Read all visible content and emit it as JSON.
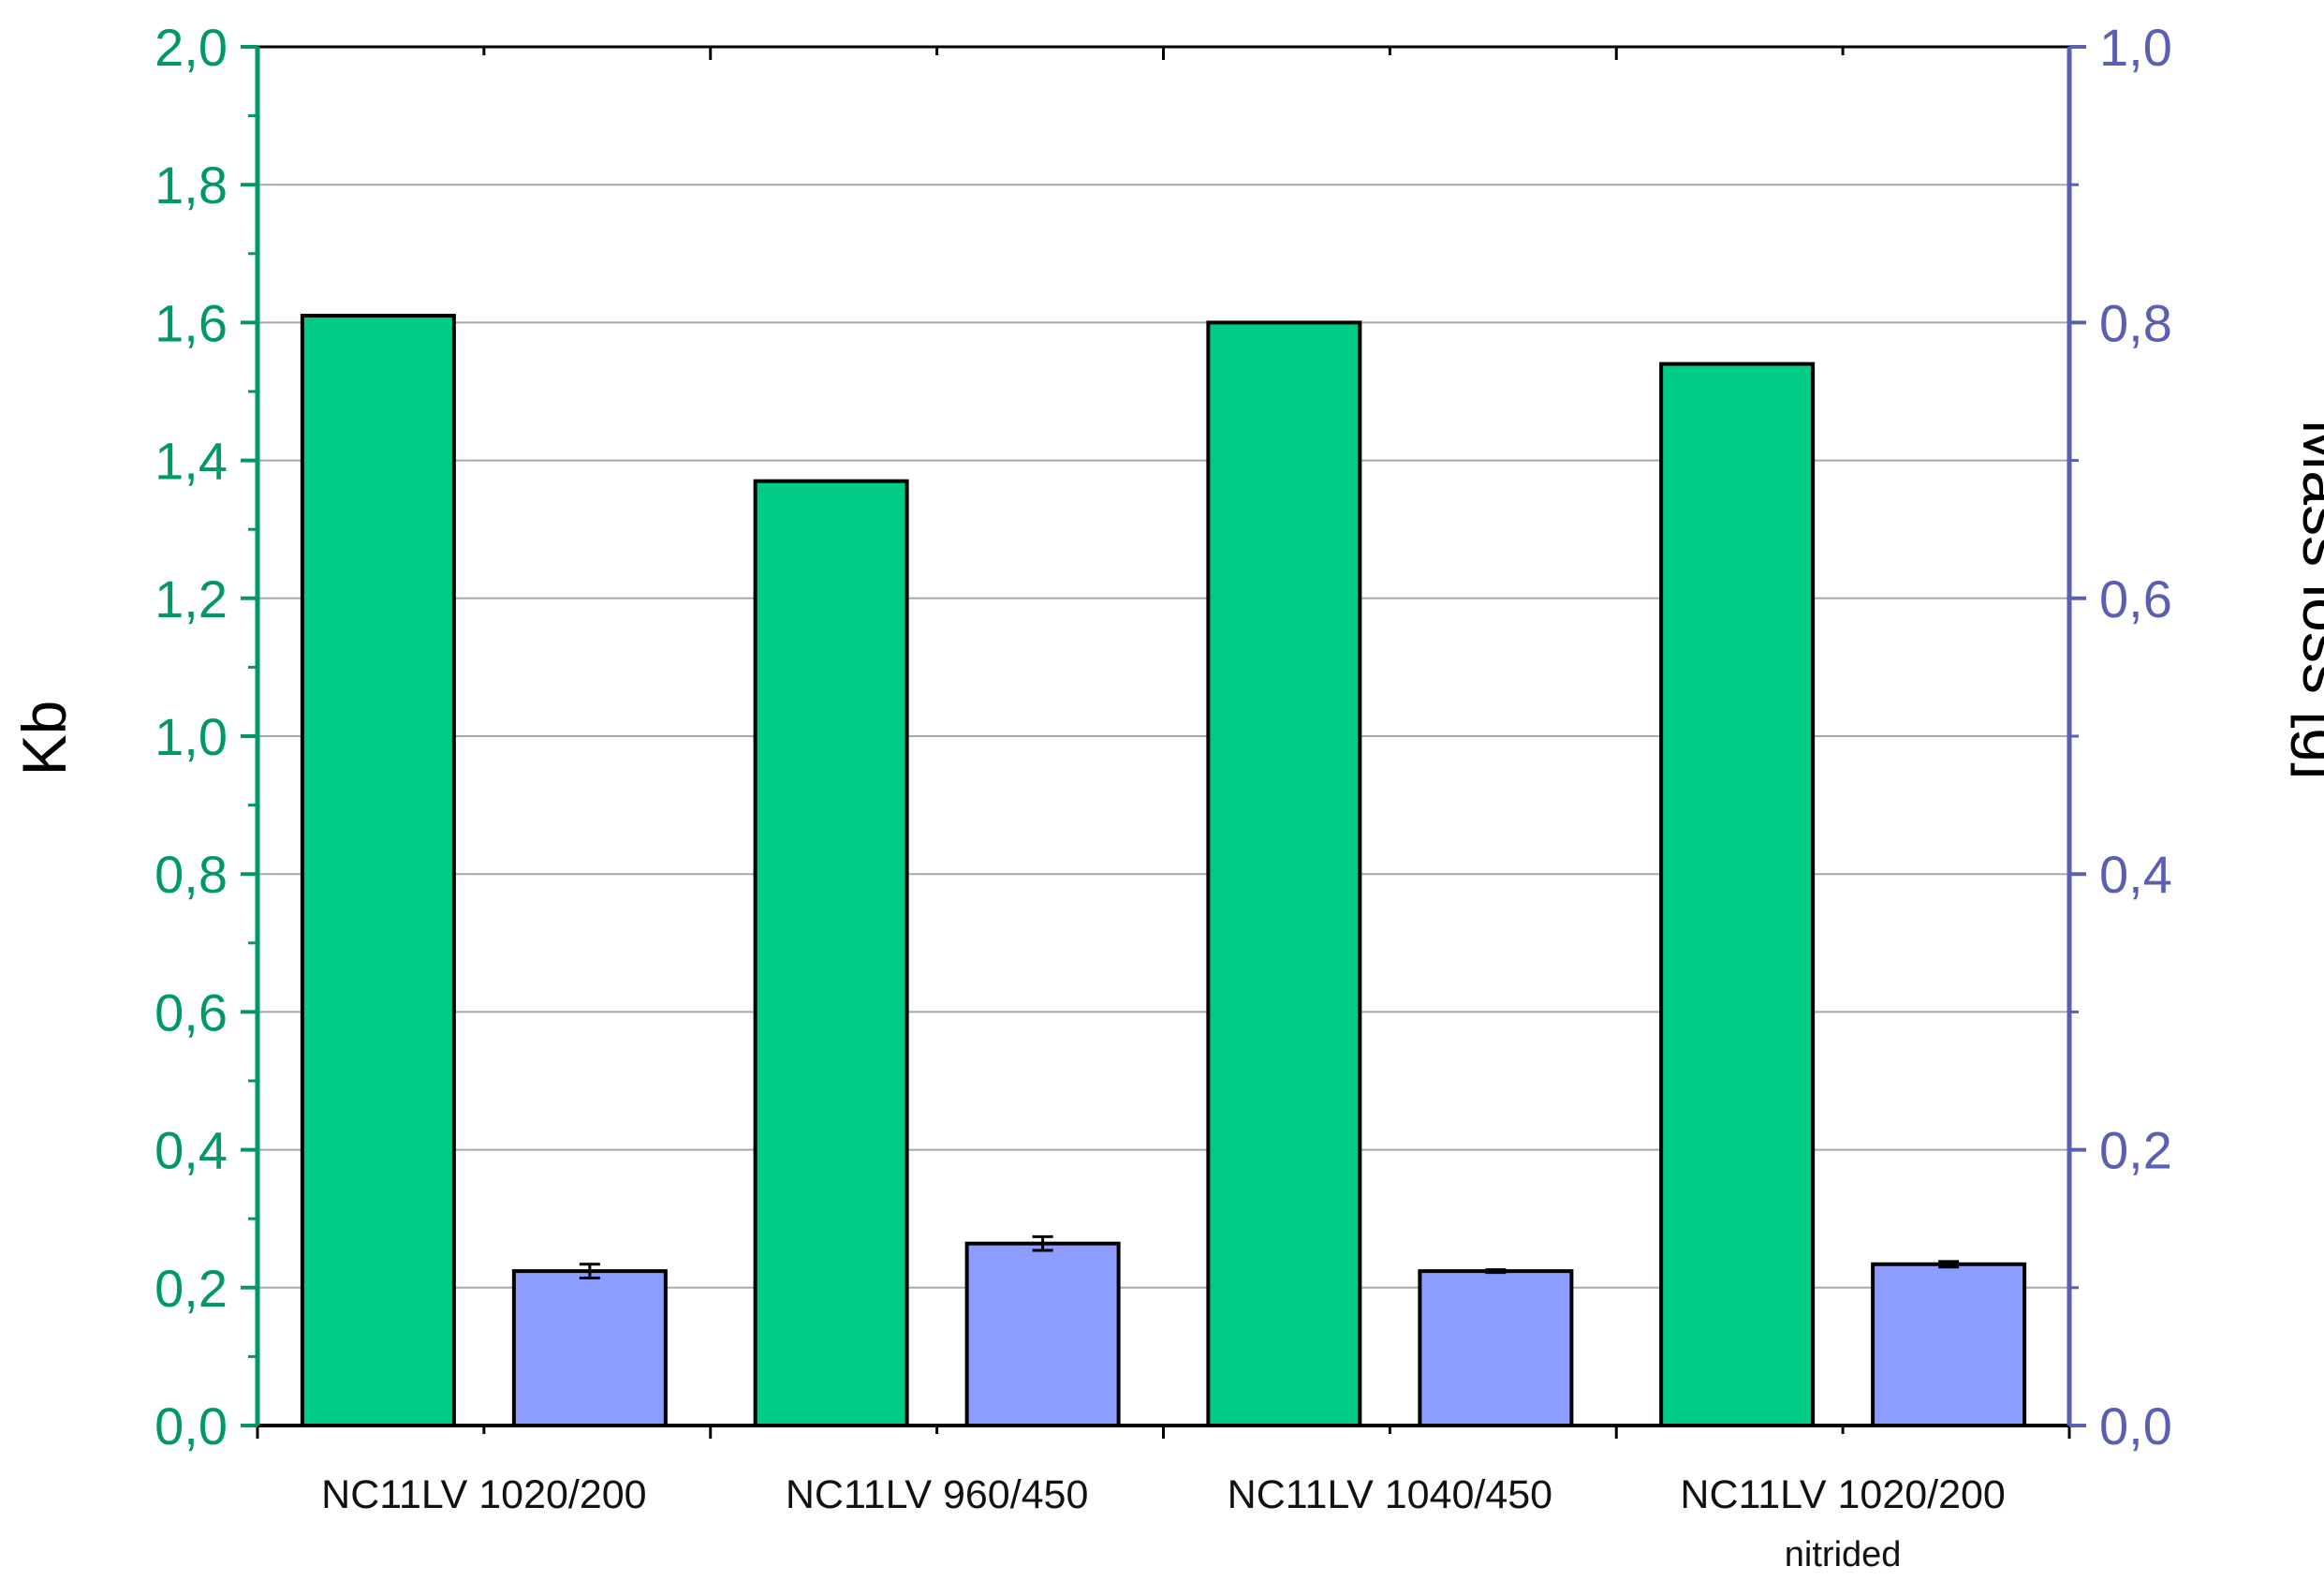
{
  "chart_data": {
    "type": "bar",
    "categories": [
      {
        "line1": "NC11LV 1020/200",
        "line2": ""
      },
      {
        "line1": "NC11LV 960/450",
        "line2": ""
      },
      {
        "line1": "NC11LV 1040/450",
        "line2": ""
      },
      {
        "line1": "NC11LV 1020/200",
        "line2": "nitrided"
      }
    ],
    "left_axis": {
      "label": "Kb",
      "range": [
        0,
        2.0
      ],
      "ticks": [
        "0,0",
        "0,2",
        "0,4",
        "0,6",
        "0,8",
        "1,0",
        "1,2",
        "1,4",
        "1,6",
        "1,8",
        "2,0"
      ],
      "color": "#009966"
    },
    "right_axis": {
      "label": "Mass loss [g]",
      "range": [
        0,
        1.0
      ],
      "ticks": [
        "0,0",
        "0,2",
        "0,4",
        "0,6",
        "0,8",
        "1,0"
      ],
      "color": "#5a5fb0"
    },
    "series": [
      {
        "axis": "left",
        "values": [
          1.61,
          1.37,
          1.6,
          1.54
        ],
        "error": [
          0,
          0,
          0,
          0
        ],
        "color": "#00cc88"
      },
      {
        "axis": "right",
        "values": [
          0.112,
          0.132,
          0.112,
          0.117
        ],
        "error": [
          0.005,
          0.005,
          0.001,
          0.002
        ],
        "color": "#8c9cff"
      }
    ],
    "grid": true,
    "legend": "none"
  }
}
